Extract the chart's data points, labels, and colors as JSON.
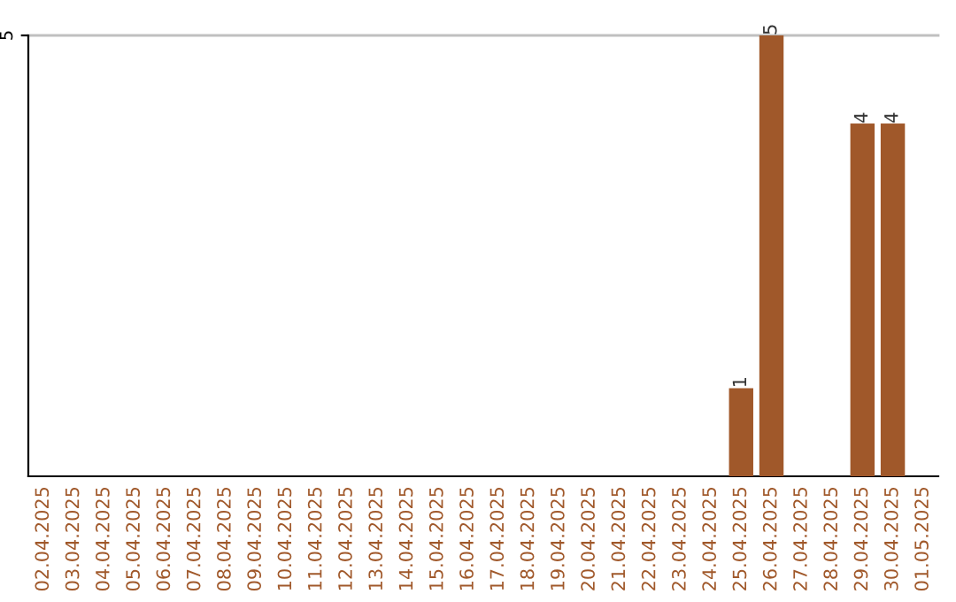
{
  "chart_data": {
    "type": "bar",
    "categories": [
      "02.04.2025",
      "03.04.2025",
      "04.04.2025",
      "05.04.2025",
      "06.04.2025",
      "07.04.2025",
      "08.04.2025",
      "09.04.2025",
      "10.04.2025",
      "11.04.2025",
      "12.04.2025",
      "13.04.2025",
      "14.04.2025",
      "15.04.2025",
      "16.04.2025",
      "17.04.2025",
      "18.04.2025",
      "19.04.2025",
      "20.04.2025",
      "21.04.2025",
      "22.04.2025",
      "23.04.2025",
      "24.04.2025",
      "25.04.2025",
      "26.04.2025",
      "27.04.2025",
      "28.04.2025",
      "29.04.2025",
      "30.04.2025",
      "01.05.2025"
    ],
    "values": [
      null,
      null,
      null,
      null,
      null,
      null,
      null,
      null,
      null,
      null,
      null,
      null,
      null,
      null,
      null,
      null,
      null,
      null,
      null,
      null,
      null,
      null,
      null,
      1,
      5,
      null,
      null,
      4,
      4,
      null
    ],
    "data_labels": true,
    "color": "#a0582a",
    "ylim": [
      0,
      5
    ],
    "yticks": [
      5
    ],
    "ref_lines": [
      {
        "axis": "y",
        "value": 5,
        "color": "#c0c0c0"
      }
    ],
    "legend": false
  }
}
